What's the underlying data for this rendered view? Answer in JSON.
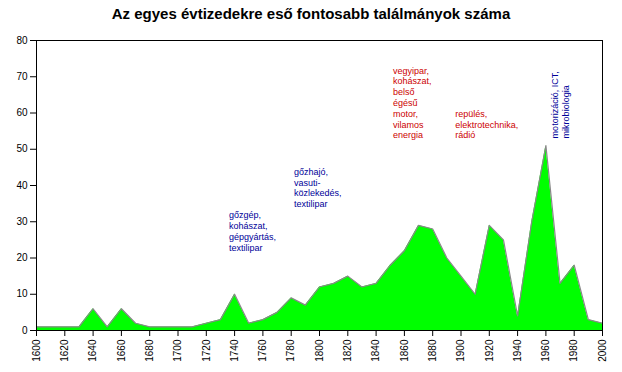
{
  "chart_data": {
    "type": "area",
    "title": "Az egyes évtizedekre eső fontosabb találmányok száma",
    "x": [
      1600,
      1610,
      1620,
      1630,
      1640,
      1650,
      1660,
      1670,
      1680,
      1690,
      1700,
      1710,
      1720,
      1730,
      1740,
      1750,
      1760,
      1770,
      1780,
      1790,
      1800,
      1810,
      1820,
      1830,
      1840,
      1850,
      1860,
      1870,
      1880,
      1890,
      1900,
      1910,
      1920,
      1930,
      1940,
      1950,
      1960,
      1970,
      1980,
      1990,
      2000
    ],
    "values": [
      1,
      1,
      1,
      1,
      6,
      1,
      6,
      2,
      1,
      1,
      1,
      1,
      2,
      3,
      10,
      2,
      3,
      5,
      9,
      7,
      12,
      13,
      15,
      12,
      13,
      18,
      22,
      29,
      28,
      20,
      15,
      10,
      29,
      25,
      4,
      30,
      51,
      13,
      18,
      3,
      2
    ],
    "color": "#00ff00",
    "grid": false,
    "xlim": [
      1600,
      2000
    ],
    "ylim": [
      0,
      80
    ],
    "xticks": [
      1600,
      1620,
      1640,
      1660,
      1680,
      1700,
      1720,
      1740,
      1760,
      1780,
      1800,
      1820,
      1840,
      1860,
      1880,
      1900,
      1920,
      1940,
      1960,
      1980,
      2000
    ],
    "yticks": [
      0,
      10,
      20,
      30,
      40,
      50,
      60,
      70,
      80
    ],
    "annotations": [
      {
        "text": "gőzgép,\nkohászat,\ngépgyártás,\ntextilipar",
        "x": 1736,
        "y": 22,
        "color": "#000099"
      },
      {
        "text": "gőzhajó,\nvasuti-\nközlekedés,\ntextilipar",
        "x": 1782,
        "y": 34,
        "color": "#000099"
      },
      {
        "text": "vegyipar,\nkohászat,\nbelső\négésű\nmotor,\nvilamos\nenergia",
        "x": 1852,
        "y": 53,
        "color": "#cc0000"
      },
      {
        "text": "repülés,\nelektrotechnika,\nrádió",
        "x": 1896,
        "y": 53,
        "color": "#cc0000"
      },
      {
        "text": "motorizáció, ICT,\nmikrobiologia",
        "x": 1963,
        "y": 53,
        "color": "#000099"
      }
    ]
  }
}
